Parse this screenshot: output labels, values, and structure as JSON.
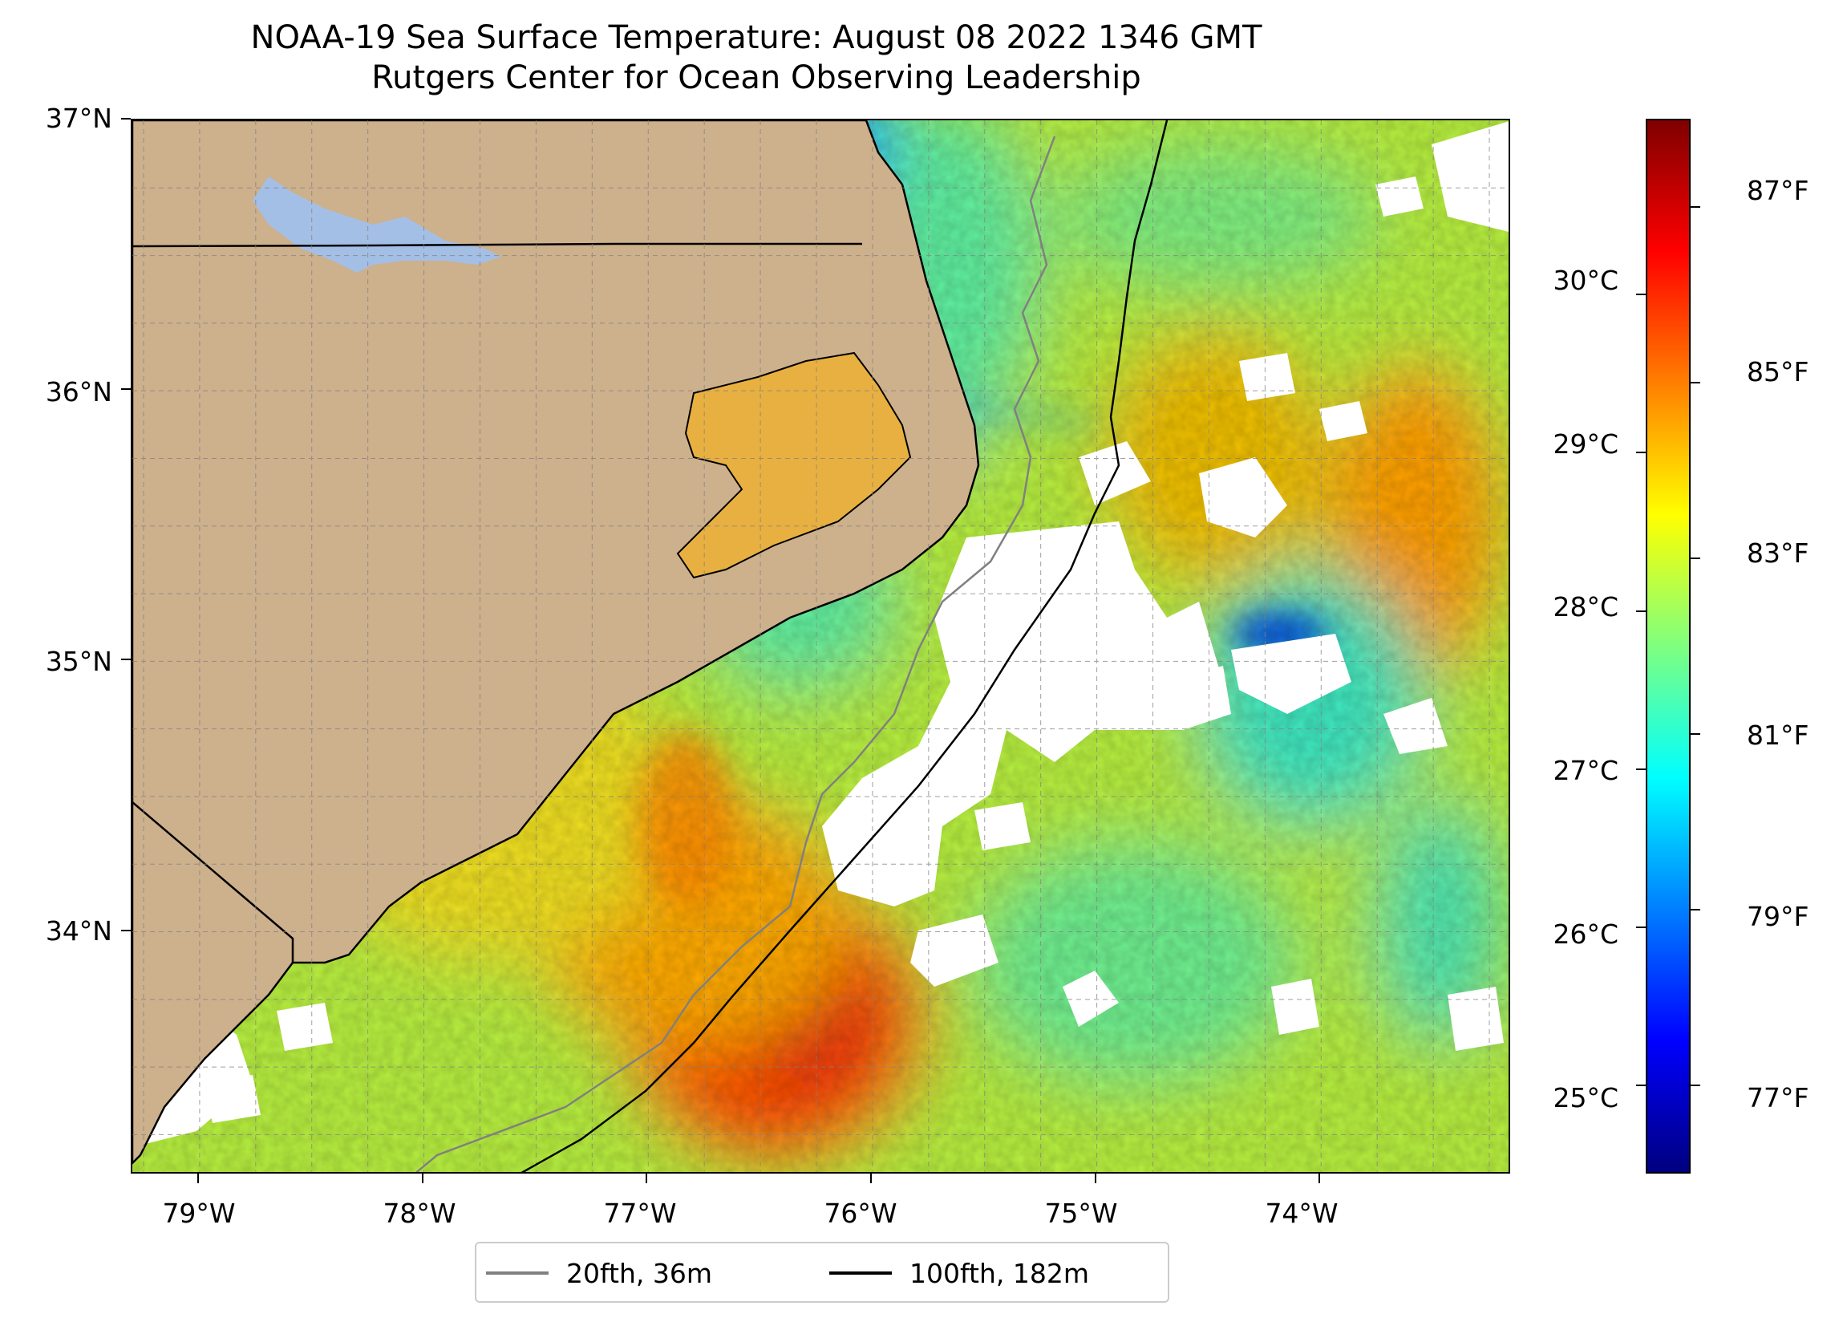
{
  "title": {
    "line1": "NOAA-19 Sea Surface Temperature: August 08 2022 1346 GMT",
    "line2": "Rutgers Center for Ocean Observing Leadership"
  },
  "map": {
    "lat_range": [
      33.1,
      37.0
    ],
    "lon_range": [
      -79.3,
      -73.15
    ],
    "lat_ticks": [
      "37°N",
      "36°N",
      "35°N",
      "34°N"
    ],
    "lat_tick_values": [
      37,
      36,
      35,
      34
    ],
    "lon_ticks": [
      "79°W",
      "78°W",
      "77°W",
      "76°W",
      "75°W",
      "74°W"
    ],
    "lon_tick_values": [
      -79,
      -78,
      -77,
      -76,
      -75,
      -74
    ],
    "grid": true,
    "land_color": "#cdb08c",
    "lake_color": "#a4bfe6",
    "cloud_mask_color": "#ffffff"
  },
  "colorbar": {
    "colormap": "jet",
    "celsius_labels": [
      "30°C",
      "29°C",
      "28°C",
      "27°C",
      "26°C",
      "25°C"
    ],
    "celsius_values": [
      30,
      29,
      28,
      27,
      26,
      25
    ],
    "fahrenheit_labels": [
      "87°F",
      "85°F",
      "83°F",
      "81°F",
      "79°F",
      "77°F"
    ],
    "fahrenheit_values": [
      87,
      85,
      83,
      81,
      79,
      77
    ],
    "range_f": [
      76.0,
      88.0
    ]
  },
  "legend": {
    "entries": [
      {
        "label": "20fth, 36m",
        "color": "#808080"
      },
      {
        "label": "100fth, 182m",
        "color": "#000000"
      }
    ],
    "placement": "bottom-center"
  }
}
